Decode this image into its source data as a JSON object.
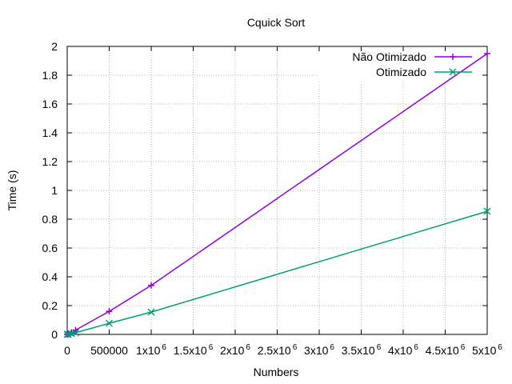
{
  "chart_data": {
    "type": "line",
    "title": "Cquick Sort",
    "xlabel": "Numbers",
    "ylabel": "Time (s)",
    "xlim": [
      0,
      5000000
    ],
    "ylim": [
      0,
      2
    ],
    "grid": true,
    "legend_position": "top-right",
    "x_ticks": [
      {
        "value": 0,
        "base": "0",
        "exp": ""
      },
      {
        "value": 500000,
        "base": "500000",
        "exp": ""
      },
      {
        "value": 1000000,
        "base": "1x10",
        "exp": "6"
      },
      {
        "value": 1500000,
        "base": "1.5x10",
        "exp": "6"
      },
      {
        "value": 2000000,
        "base": "2x10",
        "exp": "6"
      },
      {
        "value": 2500000,
        "base": "2.5x10",
        "exp": "6"
      },
      {
        "value": 3000000,
        "base": "3x10",
        "exp": "6"
      },
      {
        "value": 3500000,
        "base": "3.5x10",
        "exp": "6"
      },
      {
        "value": 4000000,
        "base": "4x10",
        "exp": "6"
      },
      {
        "value": 4500000,
        "base": "4.5x10",
        "exp": "6"
      },
      {
        "value": 5000000,
        "base": "5x10",
        "exp": "6"
      }
    ],
    "y_ticks": [
      {
        "value": 0,
        "label": "0"
      },
      {
        "value": 0.2,
        "label": "0.2"
      },
      {
        "value": 0.4,
        "label": "0.4"
      },
      {
        "value": 0.6,
        "label": "0.6"
      },
      {
        "value": 0.8,
        "label": "0.8"
      },
      {
        "value": 1,
        "label": "1"
      },
      {
        "value": 1.2,
        "label": "1.2"
      },
      {
        "value": 1.4,
        "label": "1.4"
      },
      {
        "value": 1.6,
        "label": "1.6"
      },
      {
        "value": 1.8,
        "label": "1.8"
      },
      {
        "value": 2,
        "label": "2"
      }
    ],
    "series": [
      {
        "name": "Não Otimizado",
        "color": "#9400d3",
        "marker": "plus",
        "x": [
          1000,
          10000,
          50000,
          100000,
          500000,
          1000000,
          5000000
        ],
        "y": [
          0.0,
          0.002,
          0.013,
          0.03,
          0.16,
          0.34,
          1.95
        ]
      },
      {
        "name": "Otimizado",
        "color": "#009e73",
        "marker": "cross",
        "x": [
          1000,
          10000,
          50000,
          100000,
          500000,
          1000000,
          5000000
        ],
        "y": [
          0.0,
          0.001,
          0.006,
          0.012,
          0.077,
          0.155,
          0.855
        ]
      }
    ]
  }
}
